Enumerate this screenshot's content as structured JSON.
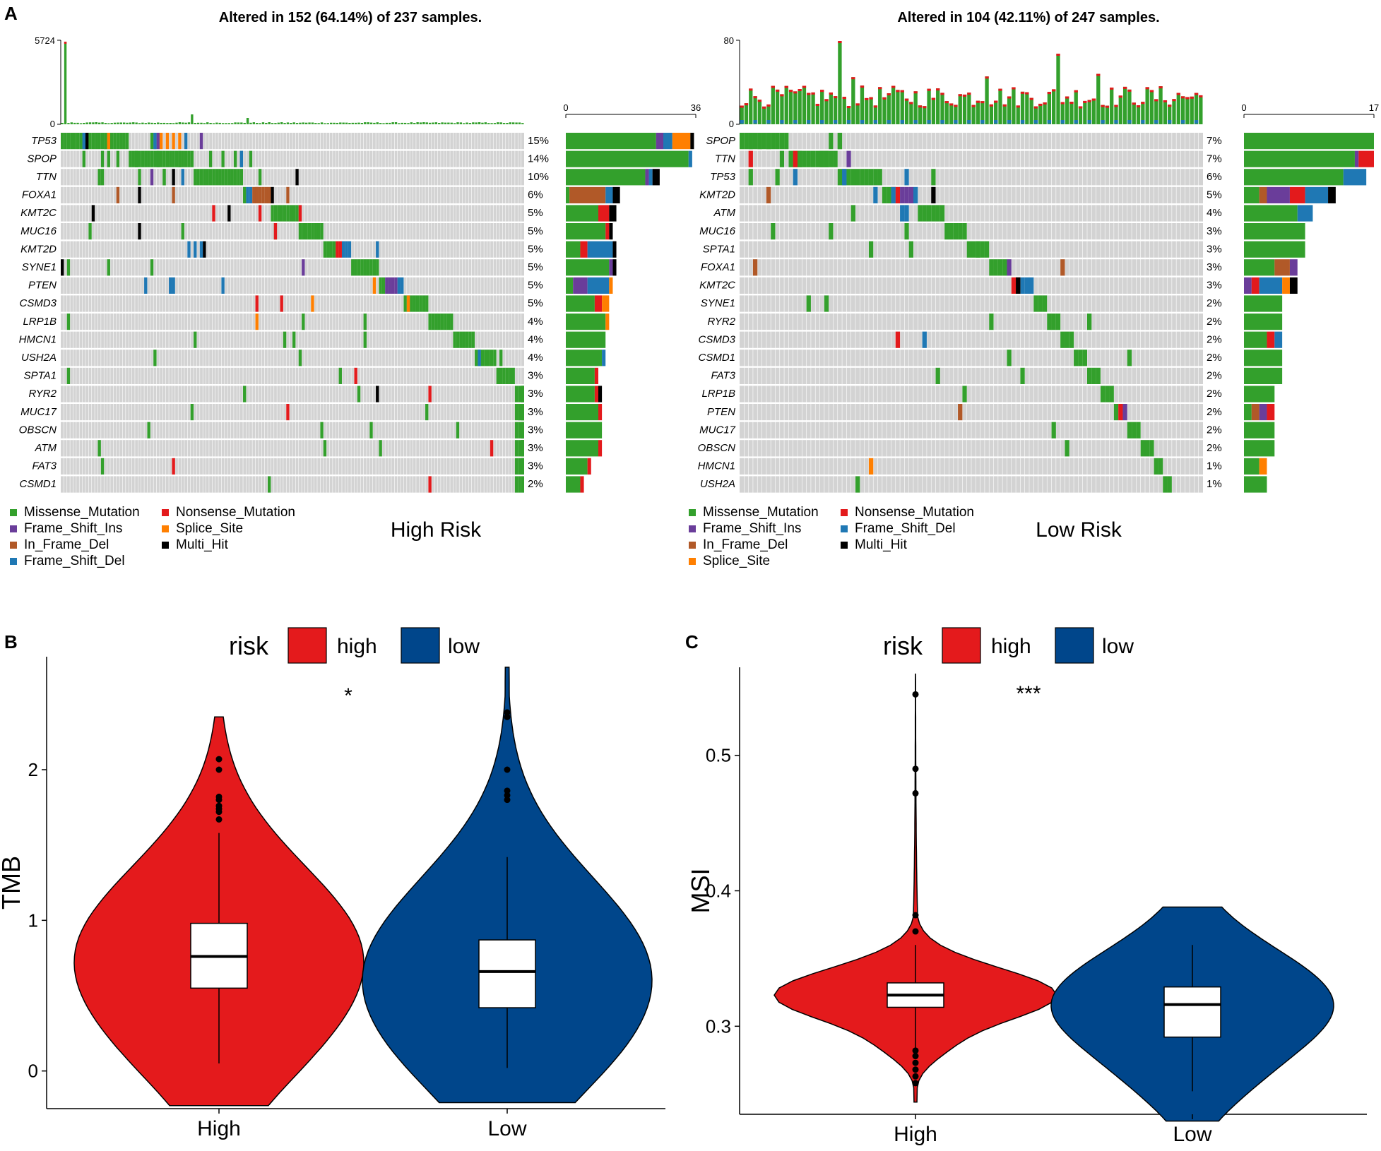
{
  "panel_labels": {
    "a": "A",
    "b": "B",
    "c": "C"
  },
  "colors": {
    "Missense_Mutation": "#33A02C",
    "Nonsense_Mutation": "#E31A1C",
    "Frame_Shift_Ins": "#6A3D9A",
    "Frame_Shift_Del": "#1F78B4",
    "In_Frame_Del": "#B15928",
    "Splice_Site": "#FF7F00",
    "Multi_Hit": "#000000",
    "bg": "#D3D3D3",
    "high": "#E41A1C",
    "low": "#00468B"
  },
  "chart_data": [
    {
      "type": "heatmap",
      "panel": "A",
      "title": "Altered in 152 (64.14%) of 237 samples.",
      "group_label": "High Risk",
      "n_samples": 237,
      "tmb_axis": {
        "min": 0,
        "max": 5724,
        "labels": [
          "0",
          "5724"
        ]
      },
      "count_axis": {
        "min": 0,
        "max": 36,
        "labels": [
          "0",
          "36"
        ]
      },
      "genes": [
        "TP53",
        "SPOP",
        "TTN",
        "FOXA1",
        "KMT2C",
        "MUC16",
        "KMT2D",
        "SYNE1",
        "PTEN",
        "CSMD3",
        "LRP1B",
        "HMCN1",
        "USH2A",
        "SPTA1",
        "RYR2",
        "MUC17",
        "OBSCN",
        "ATM",
        "FAT3",
        "CSMD1"
      ],
      "percents": [
        "15%",
        "14%",
        "10%",
        "6%",
        "5%",
        "5%",
        "5%",
        "5%",
        "5%",
        "5%",
        "4%",
        "4%",
        "4%",
        "3%",
        "3%",
        "3%",
        "3%",
        "3%",
        "3%",
        "2%"
      ],
      "gene_counts": [
        {
          "Missense_Mutation": 25,
          "Frame_Shift_Ins": 2,
          "Frame_Shift_Del": 2.5,
          "Splice_Site": 5,
          "Multi_Hit": 1
        },
        {
          "Missense_Mutation": 34,
          "Frame_Shift_Del": 1
        },
        {
          "Missense_Mutation": 22,
          "Frame_Shift_Ins": 1,
          "Frame_Shift_Del": 1,
          "Multi_Hit": 2
        },
        {
          "In_Frame_Del": 10,
          "Frame_Shift_Del": 2,
          "Missense_Mutation": 1,
          "Multi_Hit": 2
        },
        {
          "Missense_Mutation": 9,
          "Nonsense_Mutation": 3,
          "Multi_Hit": 2
        },
        {
          "Missense_Mutation": 11,
          "Nonsense_Mutation": 1,
          "Multi_Hit": 1
        },
        {
          "Frame_Shift_Del": 7,
          "Missense_Mutation": 4,
          "Nonsense_Mutation": 2,
          "Multi_Hit": 1
        },
        {
          "Missense_Mutation": 12,
          "Frame_Shift_Ins": 1,
          "Multi_Hit": 1
        },
        {
          "Missense_Mutation": 2,
          "Frame_Shift_Ins": 4,
          "Frame_Shift_Del": 6,
          "Splice_Site": 1
        },
        {
          "Missense_Mutation": 8,
          "Nonsense_Mutation": 2,
          "Splice_Site": 2
        },
        {
          "Missense_Mutation": 11,
          "Splice_Site": 1
        },
        {
          "Missense_Mutation": 11
        },
        {
          "Missense_Mutation": 10,
          "Frame_Shift_Del": 1
        },
        {
          "Missense_Mutation": 8,
          "Nonsense_Mutation": 1
        },
        {
          "Missense_Mutation": 8,
          "Nonsense_Mutation": 1,
          "Multi_Hit": 1
        },
        {
          "Missense_Mutation": 9,
          "Nonsense_Mutation": 1
        },
        {
          "Missense_Mutation": 10
        },
        {
          "Missense_Mutation": 9,
          "Nonsense_Mutation": 1
        },
        {
          "Missense_Mutation": 6,
          "Nonsense_Mutation": 1
        },
        {
          "Missense_Mutation": 4,
          "Nonsense_Mutation": 1
        }
      ],
      "legend": [
        "Missense_Mutation",
        "Nonsense_Mutation",
        "Frame_Shift_Ins",
        "Splice_Site",
        "In_Frame_Del",
        "Multi_Hit",
        "Frame_Shift_Del"
      ]
    },
    {
      "type": "heatmap",
      "panel": "A",
      "title": "Altered in 104 (42.11%) of 247 samples.",
      "group_label": "Low Risk",
      "n_samples": 247,
      "tmb_axis": {
        "min": 0,
        "max": 80,
        "labels": [
          "0",
          "80"
        ]
      },
      "count_axis": {
        "min": 0,
        "max": 17,
        "labels": [
          "0",
          "17"
        ]
      },
      "genes": [
        "SPOP",
        "TTN",
        "TP53",
        "KMT2D",
        "ATM",
        "MUC16",
        "SPTA1",
        "FOXA1",
        "KMT2C",
        "SYNE1",
        "RYR2",
        "CSMD3",
        "CSMD1",
        "FAT3",
        "LRP1B",
        "PTEN",
        "MUC17",
        "OBSCN",
        "HMCN1",
        "USH2A"
      ],
      "percents": [
        "7%",
        "7%",
        "6%",
        "5%",
        "4%",
        "3%",
        "3%",
        "3%",
        "3%",
        "2%",
        "2%",
        "2%",
        "2%",
        "2%",
        "2%",
        "2%",
        "2%",
        "2%",
        "1%",
        "1%"
      ],
      "gene_counts": [
        {
          "Missense_Mutation": 17
        },
        {
          "Missense_Mutation": 14.5,
          "Frame_Shift_Ins": 0.5,
          "Nonsense_Mutation": 2
        },
        {
          "Missense_Mutation": 13,
          "Frame_Shift_Del": 3
        },
        {
          "Missense_Mutation": 2,
          "Frame_Shift_Ins": 3,
          "In_Frame_Del": 1,
          "Nonsense_Mutation": 2,
          "Frame_Shift_Del": 3,
          "Multi_Hit": 1
        },
        {
          "Missense_Mutation": 7,
          "Frame_Shift_Del": 2
        },
        {
          "Missense_Mutation": 8
        },
        {
          "Missense_Mutation": 8
        },
        {
          "Missense_Mutation": 4,
          "Frame_Shift_Ins": 1,
          "In_Frame_Del": 2
        },
        {
          "Splice_Site": 1,
          "Frame_Shift_Ins": 1,
          "Nonsense_Mutation": 1,
          "Frame_Shift_Del": 3,
          "Multi_Hit": 1
        },
        {
          "Missense_Mutation": 5
        },
        {
          "Missense_Mutation": 5
        },
        {
          "Missense_Mutation": 3,
          "Nonsense_Mutation": 1,
          "Frame_Shift_Del": 1
        },
        {
          "Missense_Mutation": 5
        },
        {
          "Missense_Mutation": 5
        },
        {
          "Missense_Mutation": 4
        },
        {
          "Frame_Shift_Ins": 1,
          "In_Frame_Del": 1,
          "Nonsense_Mutation": 1,
          "Missense_Mutation": 1
        },
        {
          "Missense_Mutation": 4
        },
        {
          "Missense_Mutation": 4
        },
        {
          "Missense_Mutation": 2,
          "Splice_Site": 1
        },
        {
          "Missense_Mutation": 3
        }
      ],
      "legend": [
        "Missense_Mutation",
        "Nonsense_Mutation",
        "Frame_Shift_Ins",
        "Frame_Shift_Del",
        "In_Frame_Del",
        "Multi_Hit",
        "Splice_Site"
      ]
    },
    {
      "type": "violin",
      "panel": "B",
      "legend_title": "risk",
      "legend_items": [
        "high",
        "low"
      ],
      "ylabel": "TMB",
      "categories": [
        "High",
        "Low"
      ],
      "ylim": [
        -0.25,
        2.75
      ],
      "yticks": [
        0,
        1,
        2
      ],
      "significance": "*",
      "groups": [
        {
          "name": "High",
          "q1": 0.55,
          "median": 0.76,
          "q3": 0.98,
          "whisker_low": 0.05,
          "whisker_high": 1.58,
          "min": -0.23,
          "max": 2.35,
          "outliers": [
            1.67,
            1.72,
            1.74,
            1.76,
            1.8,
            1.82,
            2.0,
            2.07
          ]
        },
        {
          "name": "Low",
          "q1": 0.42,
          "median": 0.66,
          "q3": 0.87,
          "whisker_low": 0.02,
          "whisker_high": 1.42,
          "min": -0.21,
          "max": 2.68,
          "outliers": [
            1.8,
            1.83,
            1.86,
            2.0,
            2.35,
            2.38
          ]
        }
      ]
    },
    {
      "type": "violin",
      "panel": "C",
      "legend_title": "risk",
      "legend_items": [
        "high",
        "low"
      ],
      "ylabel": "MSI",
      "categories": [
        "High",
        "Low"
      ],
      "ylim": [
        0.235,
        0.565
      ],
      "yticks": [
        0.3,
        0.4,
        0.5
      ],
      "significance": "***",
      "groups": [
        {
          "name": "High",
          "q1": 0.314,
          "median": 0.323,
          "q3": 0.332,
          "whisker_low": 0.283,
          "whisker_high": 0.36,
          "min": 0.244,
          "max": 0.56,
          "outliers": [
            0.258,
            0.263,
            0.268,
            0.273,
            0.278,
            0.282,
            0.37,
            0.382,
            0.472,
            0.49,
            0.545
          ]
        },
        {
          "name": "Low",
          "q1": 0.292,
          "median": 0.316,
          "q3": 0.329,
          "whisker_low": 0.252,
          "whisker_high": 0.36,
          "min": 0.23,
          "max": 0.388,
          "outliers": []
        }
      ]
    }
  ]
}
